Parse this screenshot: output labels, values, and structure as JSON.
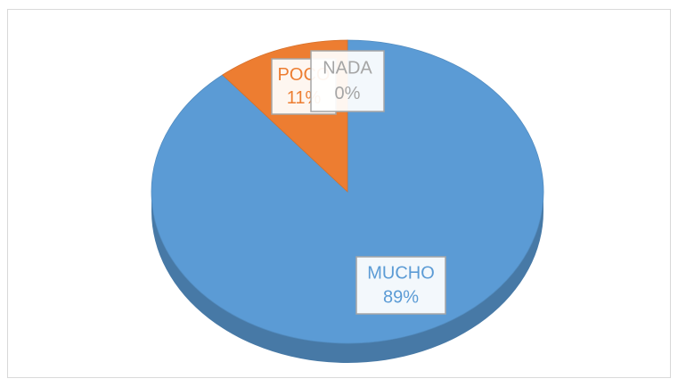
{
  "chart_data": {
    "type": "pie3d",
    "categories": [
      "MUCHO",
      "POCO",
      "NADA"
    ],
    "values": [
      89,
      11,
      0
    ],
    "value_labels": [
      "89%",
      "11%",
      "0%"
    ],
    "colors": [
      "#5b9bd5",
      "#ed7d31",
      "#a5a5a5"
    ]
  }
}
